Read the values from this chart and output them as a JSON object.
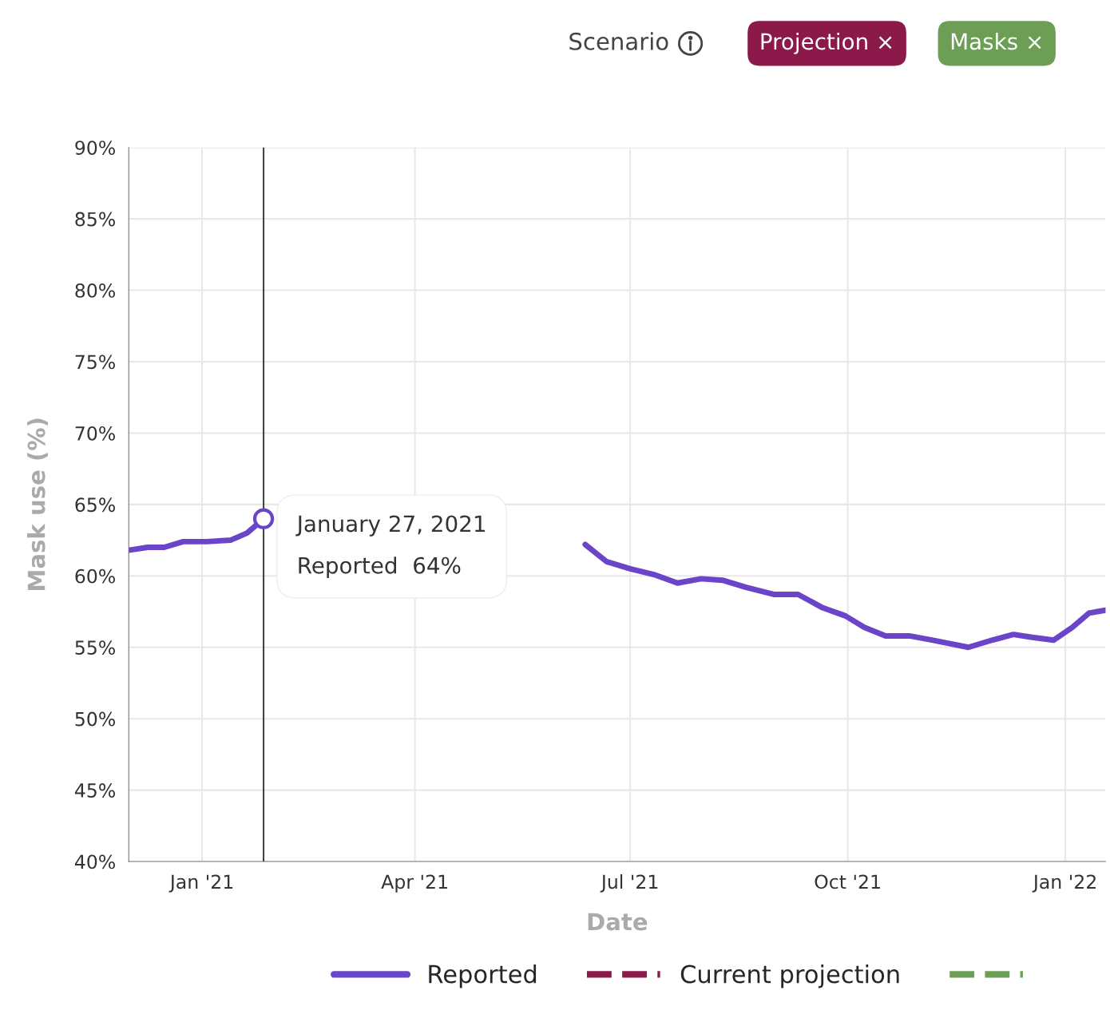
{
  "chart_data": {
    "type": "line",
    "xlabel": "Date",
    "ylabel": "Mask use (%)",
    "x": [
      "2020-12-01",
      "2020-12-09",
      "2020-12-16",
      "2020-12-24",
      "2021-01-03",
      "2021-01-13",
      "2021-01-20",
      "2021-01-27",
      "2021-02-15",
      "2021-06-12",
      "2021-06-21",
      "2021-07-01",
      "2021-07-11",
      "2021-07-21",
      "2021-07-31",
      "2021-08-09",
      "2021-08-19",
      "2021-08-31",
      "2021-09-10",
      "2021-09-20",
      "2021-09-30",
      "2021-10-08",
      "2021-10-17",
      "2021-10-27",
      "2021-11-06",
      "2021-11-21",
      "2021-12-01",
      "2021-12-10",
      "2021-12-18",
      "2021-12-27",
      "2022-01-04",
      "2022-01-11",
      "2022-01-18"
    ],
    "series": [
      {
        "name": "Reported",
        "color": "#6a45c9",
        "line_style": "solid",
        "values": [
          61.8,
          62.0,
          62.0,
          62.4,
          62.4,
          62.5,
          63.0,
          64,
          null,
          62.2,
          61.0,
          60.5,
          60.1,
          59.5,
          59.8,
          59.7,
          59.2,
          58.7,
          58.7,
          57.8,
          57.2,
          56.4,
          55.8,
          55.8,
          55.5,
          55.0,
          55.5,
          55.9,
          55.7,
          55.5,
          56.4,
          57.4,
          57.6
        ]
      },
      {
        "name": "Current projection",
        "color": "#8b1a4a",
        "line_style": "dashed",
        "values": [
          null,
          null,
          null,
          null,
          null,
          null,
          null,
          null,
          null,
          null,
          null,
          null,
          null,
          null,
          null,
          null,
          null,
          null,
          null,
          null,
          null,
          null,
          null,
          null,
          null,
          null,
          null,
          null,
          null,
          null,
          null,
          null,
          null
        ]
      },
      {
        "color": "#6d9e55",
        "line_style": "dashed",
        "values": [
          null,
          null,
          null,
          null,
          null,
          null,
          null,
          null,
          null,
          null,
          null,
          null,
          null,
          null,
          null,
          null,
          null,
          null,
          null,
          null,
          null,
          null,
          null,
          null,
          null,
          null,
          null,
          null,
          null,
          null,
          null,
          null,
          null
        ]
      }
    ],
    "xlim": [
      "2020-12-01",
      "2022-01-18"
    ],
    "xticks": [
      {
        "value": "2021-01-01",
        "label": "Jan '21"
      },
      {
        "value": "2021-04-01",
        "label": "Apr '21"
      },
      {
        "value": "2021-07-01",
        "label": "Jul '21"
      },
      {
        "value": "2021-10-01",
        "label": "Oct '21"
      },
      {
        "value": "2022-01-01",
        "label": "Jan '22"
      }
    ],
    "ylim": [
      40,
      90
    ],
    "yticks": [
      {
        "value": 40,
        "label": "40%"
      },
      {
        "value": 45,
        "label": "45%"
      },
      {
        "value": 50,
        "label": "50%"
      },
      {
        "value": 55,
        "label": "55%"
      },
      {
        "value": 60,
        "label": "60%"
      },
      {
        "value": 65,
        "label": "65%"
      },
      {
        "value": 70,
        "label": "70%"
      },
      {
        "value": 75,
        "label": "75%"
      },
      {
        "value": 80,
        "label": "80%"
      },
      {
        "value": 85,
        "label": "85%"
      },
      {
        "value": 90,
        "label": "90%"
      }
    ],
    "ref_lines": [
      {
        "axis": "x",
        "value": "2021-01-27",
        "color": "#444444"
      }
    ],
    "annotations": [
      {
        "text": "January 27, 2021\nReported  64%",
        "x": "2021-01-27",
        "y": 64
      },
      "Scenario",
      "Projection ×",
      "Masks ×"
    ],
    "grid": true,
    "legend": "bottom"
  }
}
